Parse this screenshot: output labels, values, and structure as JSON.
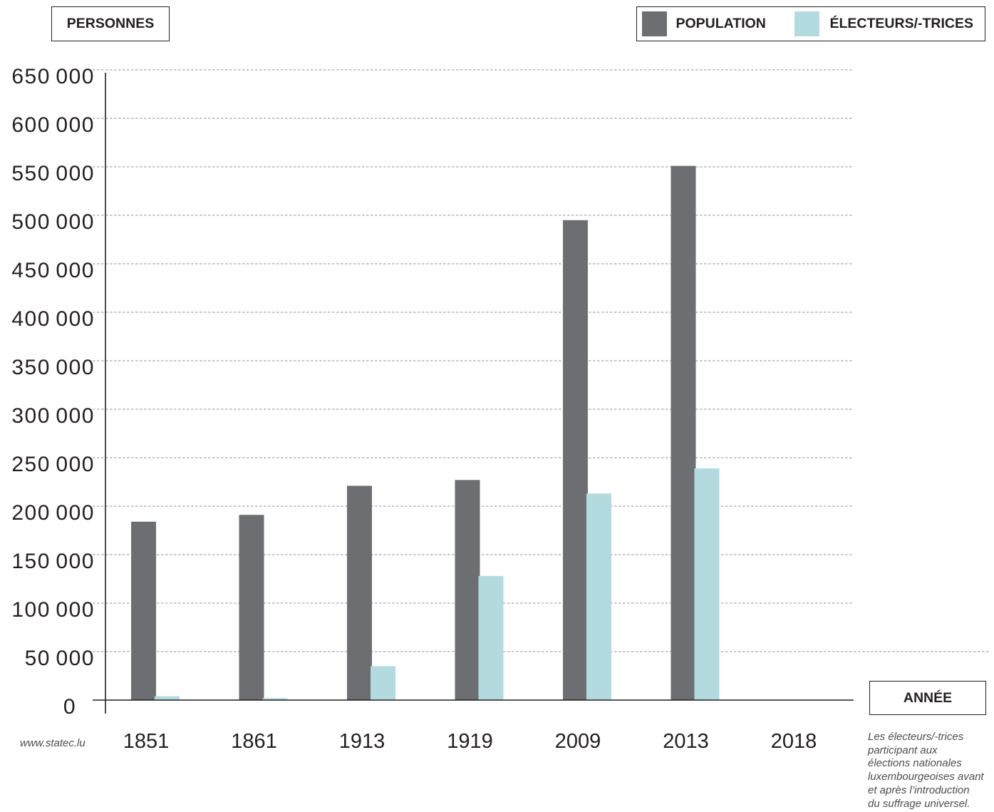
{
  "source": "www.statec.lu",
  "footnote_lines": [
    "Les électeurs/-trices",
    "participant aux",
    "élections nationales",
    "luxembourgeoises avant",
    "et après l’introduction",
    "du suffrage universel."
  ],
  "chart_data": {
    "type": "bar",
    "ylabel": "PERSONNES",
    "xlabel": "ANNÉE",
    "categories": [
      "1851",
      "1861",
      "1913",
      "1919",
      "2009",
      "2013",
      "2018"
    ],
    "series": [
      {
        "name": "POPULATION",
        "color": "#6d6e71",
        "values": [
          184000,
          191000,
          221000,
          227000,
          495000,
          551000,
          null
        ]
      },
      {
        "name": "ÉLECTEURS/-TRICES",
        "color": "#b3dbdf",
        "values": [
          4000,
          2000,
          35000,
          128000,
          213000,
          239000,
          null
        ]
      }
    ],
    "ylim": [
      0,
      650000
    ],
    "yticks": [
      0,
      50000,
      100000,
      150000,
      200000,
      250000,
      300000,
      350000,
      400000,
      450000,
      500000,
      550000,
      600000,
      650000
    ],
    "ytick_labels": [
      "0",
      "50 000",
      "100 000",
      "150 000",
      "200 000",
      "250 000",
      "300 000",
      "350 000",
      "400 000",
      "450 000",
      "500 000",
      "550 000",
      "600 000",
      "650 000"
    ],
    "grid": true,
    "legend_position": "top-right"
  }
}
